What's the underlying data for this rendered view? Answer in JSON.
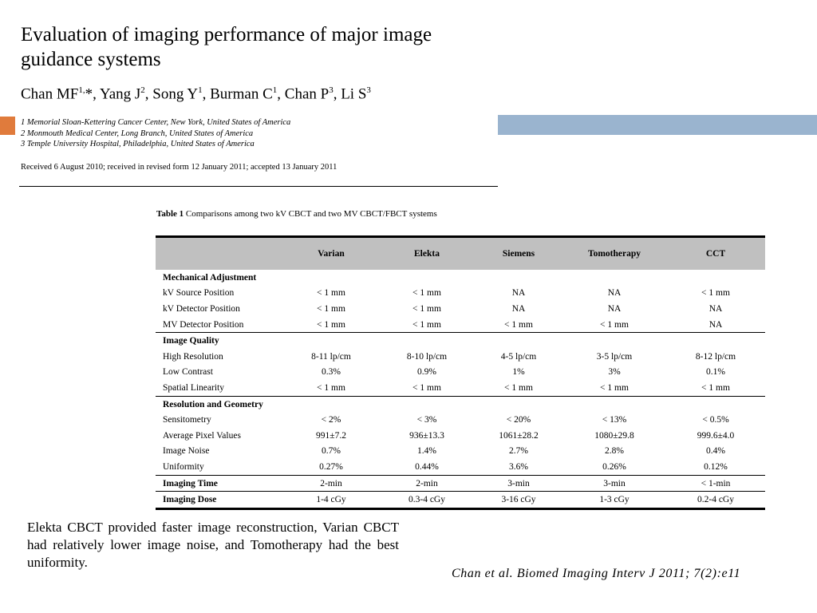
{
  "header": {
    "title": "Evaluation of imaging performance of major image guidance systems",
    "authors": [
      {
        "name": "Chan MF",
        "sup": "1,",
        "suffix": "*, "
      },
      {
        "name": "Yang J",
        "sup": "2",
        "suffix": ", "
      },
      {
        "name": "Song Y",
        "sup": "1",
        "suffix": ", "
      },
      {
        "name": "Burman C",
        "sup": "1",
        "suffix": ", "
      },
      {
        "name": "Chan P",
        "sup": "3",
        "suffix": ", "
      },
      {
        "name": "Li S",
        "sup": "3",
        "suffix": ""
      }
    ],
    "affiliations": [
      "1 Memorial Sloan-Kettering Cancer Center, New York, United States of America",
      "2 Monmouth Medical Center, Long Branch, United States of America",
      "3 Temple University Hospital, Philadelphia, United States of America"
    ],
    "received": "Received 6 August 2010; received in revised form 12 January 2011; accepted 13 January 2011"
  },
  "colors": {
    "accent_orange": "#e07b3c",
    "accent_blue": "#9ab4cf",
    "header_gray": "#c0c0c0"
  },
  "table": {
    "caption_bold": "Table 1",
    "caption_text": " Comparisons among two kV CBCT and two MV CBCT/FBCT systems",
    "columns": [
      "",
      "Varian",
      "Elekta",
      "Siemens",
      "Tomotherapy",
      "CCT"
    ],
    "rows": [
      {
        "type": "section",
        "cells": [
          "Mechanical Adjustment",
          "",
          "",
          "",
          "",
          ""
        ]
      },
      {
        "cells": [
          "kV Source Position",
          "< 1 mm",
          "< 1 mm",
          "NA",
          "NA",
          "< 1 mm"
        ]
      },
      {
        "cells": [
          "kV Detector Position",
          "< 1 mm",
          "< 1 mm",
          "NA",
          "NA",
          "NA"
        ]
      },
      {
        "cells": [
          "MV Detector Position",
          "< 1 mm",
          "< 1 mm",
          "< 1 mm",
          "< 1 mm",
          "NA"
        ]
      },
      {
        "type": "section",
        "sep": true,
        "cells": [
          "Image Quality",
          "",
          "",
          "",
          "",
          ""
        ]
      },
      {
        "cells": [
          "High Resolution",
          "8-11 lp/cm",
          "8-10 lp/cm",
          "4-5 lp/cm",
          "3-5 lp/cm",
          "8-12 lp/cm"
        ]
      },
      {
        "cells": [
          "Low Contrast",
          "0.3%",
          "0.9%",
          "1%",
          "3%",
          "0.1%"
        ]
      },
      {
        "cells": [
          "Spatial Linearity",
          "< 1 mm",
          "< 1 mm",
          "< 1 mm",
          "< 1 mm",
          "< 1 mm"
        ]
      },
      {
        "type": "section",
        "sep": true,
        "cells": [
          "Resolution and Geometry",
          "",
          "",
          "",
          "",
          ""
        ]
      },
      {
        "cells": [
          "Sensitometry",
          "< 2%",
          "< 3%",
          "< 20%",
          "< 13%",
          "< 0.5%"
        ]
      },
      {
        "cells": [
          "Average Pixel Values",
          "991±7.2",
          "936±13.3",
          "1061±28.2",
          "1080±29.8",
          "999.6±4.0"
        ]
      },
      {
        "cells": [
          "Image Noise",
          "0.7%",
          "1.4%",
          "2.7%",
          "2.8%",
          "0.4%"
        ]
      },
      {
        "cells": [
          "Uniformity",
          "0.27%",
          "0.44%",
          "3.6%",
          "0.26%",
          "0.12%"
        ]
      },
      {
        "type": "bold-label",
        "sep": true,
        "cells": [
          "Imaging Time",
          "2-min",
          "2-min",
          "3-min",
          "3-min",
          "< 1-min"
        ]
      },
      {
        "type": "bold-label",
        "sep": true,
        "cells": [
          "Imaging Dose",
          "1-4 cGy",
          "0.3-4 cGy",
          "3-16 cGy",
          "1-3 cGy",
          "0.2-4 cGy"
        ]
      }
    ]
  },
  "summary": "Elekta CBCT provided faster image reconstruction, Varian CBCT had relatively lower image noise, and Tomotherapy had the best uniformity.",
  "citation": "Chan et al. Biomed Imaging Interv J 2011; 7(2):e11"
}
